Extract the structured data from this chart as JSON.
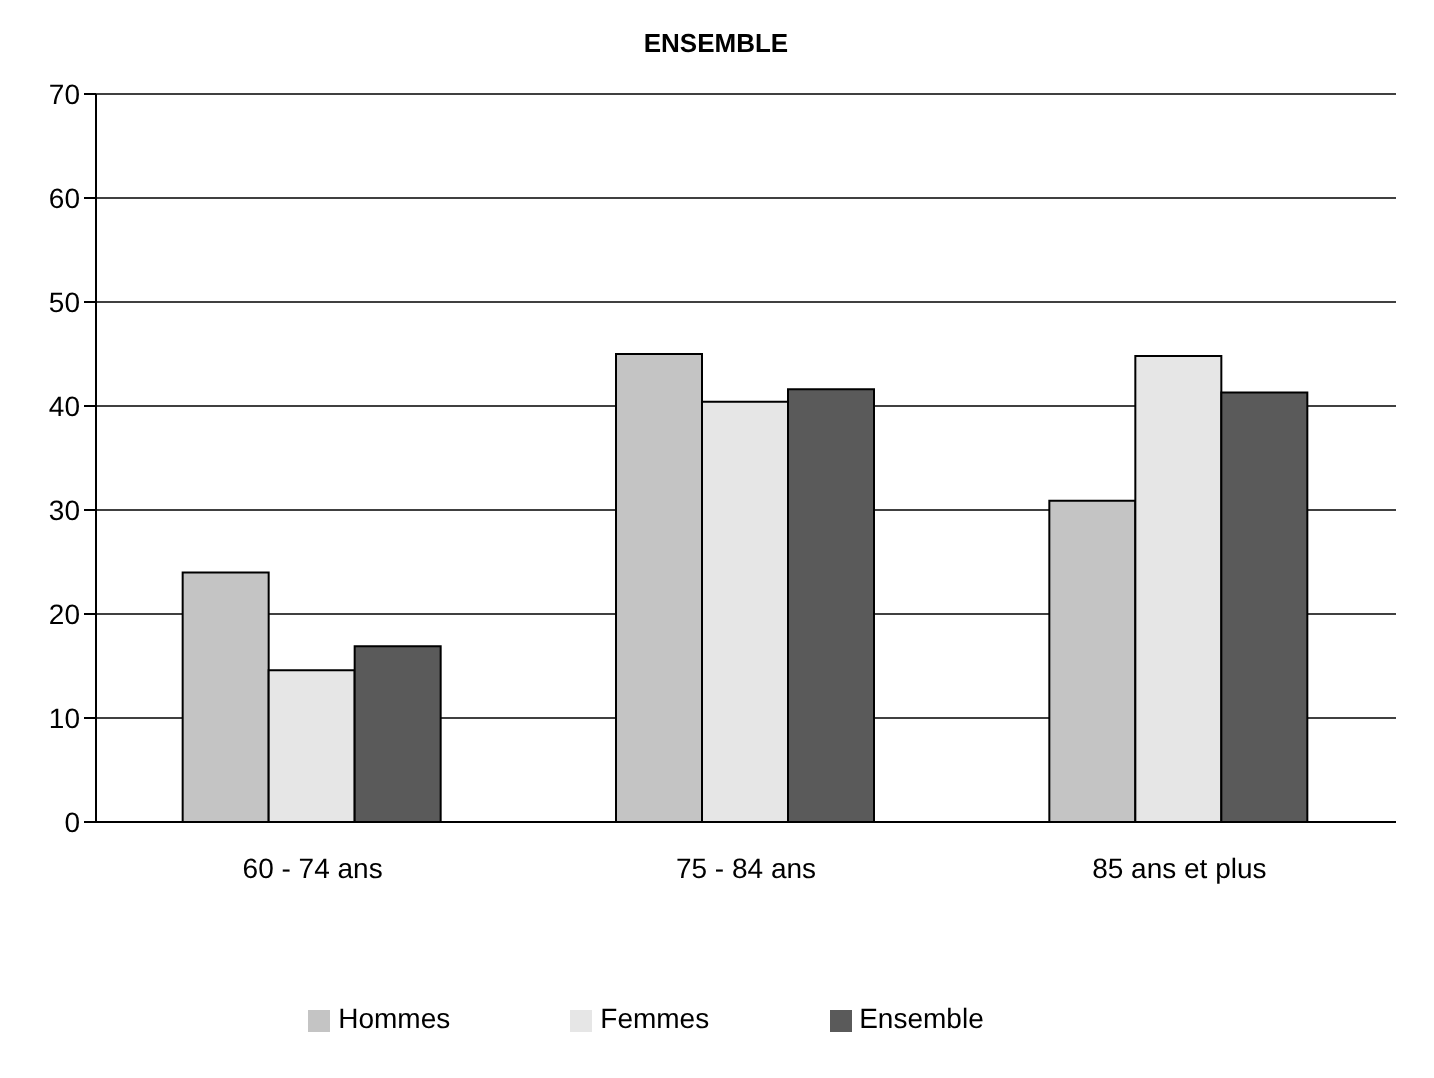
{
  "chart_data": {
    "type": "bar",
    "title": "ENSEMBLE",
    "categories": [
      "60 - 74 ans",
      "75 - 84 ans",
      "85 ans et plus"
    ],
    "series": [
      {
        "name": "Hommes",
        "color": "#c4c4c4",
        "values": [
          24,
          45,
          30.9
        ]
      },
      {
        "name": "Femmes",
        "color": "#e6e6e6",
        "values": [
          14.6,
          40.4,
          44.8
        ]
      },
      {
        "name": "Ensemble",
        "color": "#5a5a5a",
        "values": [
          16.9,
          41.6,
          41.3
        ]
      }
    ],
    "ylim": [
      0,
      70
    ],
    "yticks": [
      0,
      10,
      20,
      30,
      40,
      50,
      60,
      70
    ],
    "grid": "y",
    "legend": "bottom"
  }
}
